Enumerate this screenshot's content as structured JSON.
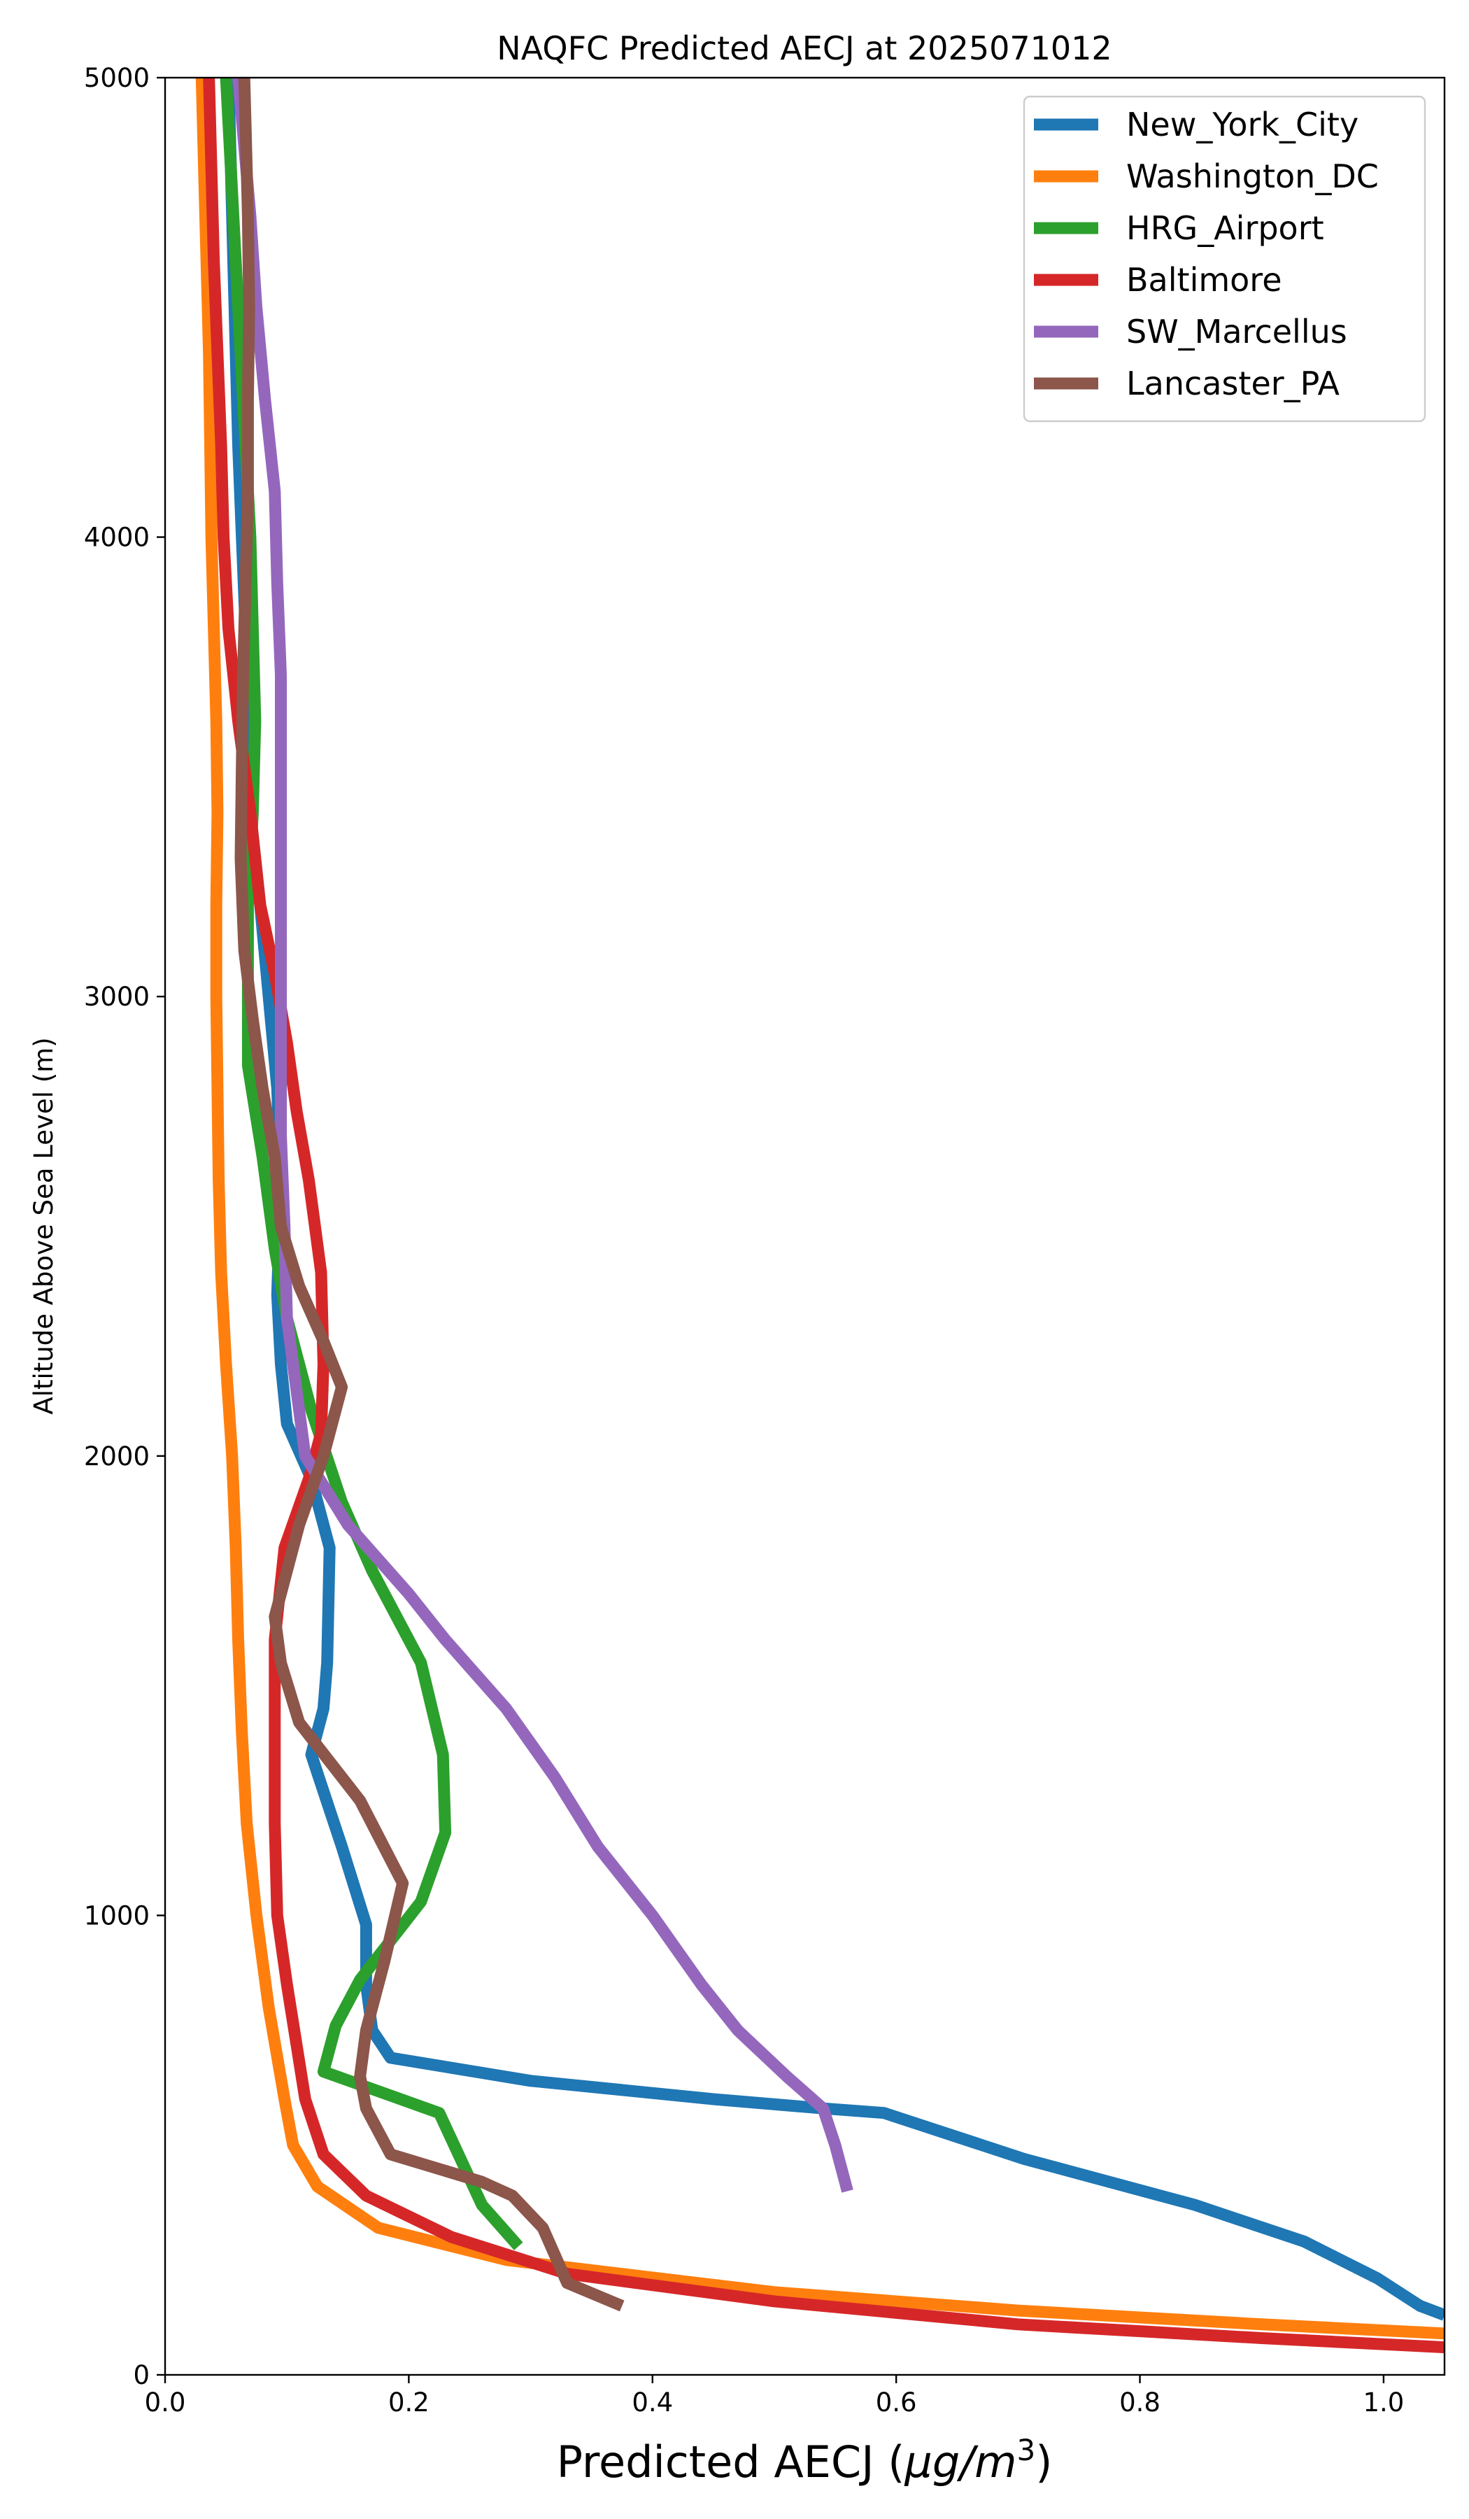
{
  "chart_data": {
    "type": "line",
    "title": "NAQFC Predicted AECJ at 2025071012",
    "xlabel": "Predicted AECJ (",
    "xlabel_unit": "μg/m",
    "xlabel_sup": "3",
    "xlabel_close": ")",
    "ylabel": "Altitude Above Sea Level (m)",
    "xlim": [
      0.0,
      1.05
    ],
    "ylim": [
      0,
      5000
    ],
    "xticks": [
      0.0,
      0.2,
      0.4,
      0.6,
      0.8,
      1.0
    ],
    "xtick_labels": [
      "0.0",
      "0.2",
      "0.4",
      "0.6",
      "0.8",
      "1.0"
    ],
    "yticks": [
      0,
      1000,
      2000,
      3000,
      4000,
      5000
    ],
    "ytick_labels": [
      "0",
      "1000",
      "2000",
      "3000",
      "4000",
      "5000"
    ],
    "grid": false,
    "legend_position": "top-right",
    "series": [
      {
        "name": "New_York_City",
        "color": "#1f77b4",
        "points": [
          [
            1.05,
            130
          ],
          [
            1.03,
            150
          ],
          [
            0.995,
            210
          ],
          [
            0.935,
            290
          ],
          [
            0.845,
            370
          ],
          [
            0.705,
            470
          ],
          [
            0.59,
            570
          ],
          [
            0.54,
            580
          ],
          [
            0.45,
            600
          ],
          [
            0.3,
            640
          ],
          [
            0.185,
            690
          ],
          [
            0.17,
            750
          ],
          [
            0.165,
            850
          ],
          [
            0.165,
            980
          ],
          [
            0.145,
            1150
          ],
          [
            0.12,
            1350
          ],
          [
            0.13,
            1450
          ],
          [
            0.133,
            1550
          ],
          [
            0.135,
            1800
          ],
          [
            0.12,
            1950
          ],
          [
            0.1,
            2070
          ],
          [
            0.095,
            2200
          ],
          [
            0.092,
            2350
          ],
          [
            0.095,
            2600
          ],
          [
            0.092,
            2800
          ],
          [
            0.085,
            3000
          ],
          [
            0.078,
            3200
          ],
          [
            0.07,
            3400
          ],
          [
            0.068,
            3600
          ],
          [
            0.066,
            3800
          ],
          [
            0.063,
            4000
          ],
          [
            0.06,
            4200
          ],
          [
            0.058,
            4400
          ],
          [
            0.056,
            4600
          ],
          [
            0.054,
            4800
          ],
          [
            0.052,
            5000
          ]
        ]
      },
      {
        "name": "Washington_DC",
        "color": "#ff7f0e",
        "points": [
          [
            1.05,
            90
          ],
          [
            0.9,
            110
          ],
          [
            0.7,
            140
          ],
          [
            0.5,
            180
          ],
          [
            0.28,
            250
          ],
          [
            0.175,
            320
          ],
          [
            0.125,
            410
          ],
          [
            0.105,
            500
          ],
          [
            0.098,
            600
          ],
          [
            0.085,
            800
          ],
          [
            0.075,
            1000
          ],
          [
            0.067,
            1200
          ],
          [
            0.063,
            1400
          ],
          [
            0.06,
            1600
          ],
          [
            0.058,
            1800
          ],
          [
            0.055,
            2000
          ],
          [
            0.05,
            2200
          ],
          [
            0.046,
            2400
          ],
          [
            0.044,
            2600
          ],
          [
            0.043,
            2800
          ],
          [
            0.042,
            3000
          ],
          [
            0.042,
            3200
          ],
          [
            0.043,
            3400
          ],
          [
            0.042,
            3600
          ],
          [
            0.04,
            3800
          ],
          [
            0.038,
            4000
          ],
          [
            0.037,
            4200
          ],
          [
            0.036,
            4400
          ],
          [
            0.034,
            4600
          ],
          [
            0.032,
            4800
          ],
          [
            0.03,
            5000
          ]
        ]
      },
      {
        "name": "HRG_Airport",
        "color": "#2ca02c",
        "points": [
          [
            0.29,
            280
          ],
          [
            0.26,
            370
          ],
          [
            0.225,
            570
          ],
          [
            0.13,
            660
          ],
          [
            0.14,
            760
          ],
          [
            0.16,
            860
          ],
          [
            0.21,
            1030
          ],
          [
            0.23,
            1180
          ],
          [
            0.228,
            1350
          ],
          [
            0.21,
            1550
          ],
          [
            0.17,
            1750
          ],
          [
            0.145,
            1900
          ],
          [
            0.12,
            2100
          ],
          [
            0.1,
            2300
          ],
          [
            0.09,
            2450
          ],
          [
            0.08,
            2650
          ],
          [
            0.068,
            2850
          ],
          [
            0.068,
            3000
          ],
          [
            0.068,
            3200
          ],
          [
            0.072,
            3400
          ],
          [
            0.074,
            3600
          ],
          [
            0.072,
            3800
          ],
          [
            0.07,
            4000
          ],
          [
            0.066,
            4200
          ],
          [
            0.062,
            4400
          ],
          [
            0.058,
            4600
          ],
          [
            0.054,
            4800
          ],
          [
            0.05,
            5000
          ]
        ]
      },
      {
        "name": "Baltimore",
        "color": "#d62728",
        "points": [
          [
            1.05,
            60
          ],
          [
            0.9,
            80
          ],
          [
            0.7,
            110
          ],
          [
            0.5,
            160
          ],
          [
            0.33,
            220
          ],
          [
            0.235,
            300
          ],
          [
            0.165,
            390
          ],
          [
            0.13,
            480
          ],
          [
            0.115,
            600
          ],
          [
            0.1,
            850
          ],
          [
            0.092,
            1000
          ],
          [
            0.09,
            1200
          ],
          [
            0.09,
            1400
          ],
          [
            0.09,
            1600
          ],
          [
            0.098,
            1800
          ],
          [
            0.118,
            1950
          ],
          [
            0.128,
            2050
          ],
          [
            0.13,
            2200
          ],
          [
            0.128,
            2400
          ],
          [
            0.118,
            2600
          ],
          [
            0.108,
            2750
          ],
          [
            0.1,
            2900
          ],
          [
            0.09,
            3050
          ],
          [
            0.078,
            3200
          ],
          [
            0.07,
            3400
          ],
          [
            0.06,
            3600
          ],
          [
            0.052,
            3800
          ],
          [
            0.048,
            4000
          ],
          [
            0.046,
            4200
          ],
          [
            0.043,
            4400
          ],
          [
            0.04,
            4600
          ],
          [
            0.038,
            4800
          ],
          [
            0.036,
            5000
          ]
        ]
      },
      {
        "name": "SW_Marcellus",
        "color": "#9467bd",
        "points": [
          [
            0.56,
            400
          ],
          [
            0.55,
            500
          ],
          [
            0.54,
            580
          ],
          [
            0.51,
            650
          ],
          [
            0.47,
            750
          ],
          [
            0.44,
            850
          ],
          [
            0.4,
            1000
          ],
          [
            0.355,
            1150
          ],
          [
            0.32,
            1300
          ],
          [
            0.28,
            1450
          ],
          [
            0.23,
            1600
          ],
          [
            0.2,
            1700
          ],
          [
            0.15,
            1850
          ],
          [
            0.115,
            2000
          ],
          [
            0.11,
            2100
          ],
          [
            0.105,
            2200
          ],
          [
            0.1,
            2300
          ],
          [
            0.098,
            2500
          ],
          [
            0.095,
            2700
          ],
          [
            0.095,
            2900
          ],
          [
            0.095,
            3100
          ],
          [
            0.095,
            3300
          ],
          [
            0.095,
            3500
          ],
          [
            0.095,
            3700
          ],
          [
            0.092,
            3900
          ],
          [
            0.09,
            4100
          ],
          [
            0.082,
            4300
          ],
          [
            0.075,
            4500
          ],
          [
            0.07,
            4700
          ],
          [
            0.065,
            4850
          ],
          [
            0.06,
            5000
          ]
        ]
      },
      {
        "name": "Lancaster_PA",
        "color": "#8c564b",
        "points": [
          [
            0.375,
            150
          ],
          [
            0.33,
            200
          ],
          [
            0.32,
            260
          ],
          [
            0.31,
            320
          ],
          [
            0.285,
            390
          ],
          [
            0.26,
            420
          ],
          [
            0.185,
            480
          ],
          [
            0.165,
            580
          ],
          [
            0.16,
            650
          ],
          [
            0.165,
            750
          ],
          [
            0.18,
            900
          ],
          [
            0.195,
            1070
          ],
          [
            0.16,
            1250
          ],
          [
            0.11,
            1420
          ],
          [
            0.095,
            1550
          ],
          [
            0.09,
            1650
          ],
          [
            0.11,
            1850
          ],
          [
            0.13,
            2000
          ],
          [
            0.145,
            2150
          ],
          [
            0.13,
            2250
          ],
          [
            0.11,
            2370
          ],
          [
            0.095,
            2500
          ],
          [
            0.09,
            2650
          ],
          [
            0.08,
            2800
          ],
          [
            0.072,
            2950
          ],
          [
            0.065,
            3100
          ],
          [
            0.062,
            3300
          ],
          [
            0.063,
            3500
          ],
          [
            0.064,
            3700
          ],
          [
            0.066,
            3900
          ],
          [
            0.068,
            4100
          ],
          [
            0.068,
            4300
          ],
          [
            0.069,
            4500
          ],
          [
            0.068,
            4700
          ],
          [
            0.066,
            4900
          ],
          [
            0.065,
            5000
          ]
        ]
      }
    ]
  }
}
